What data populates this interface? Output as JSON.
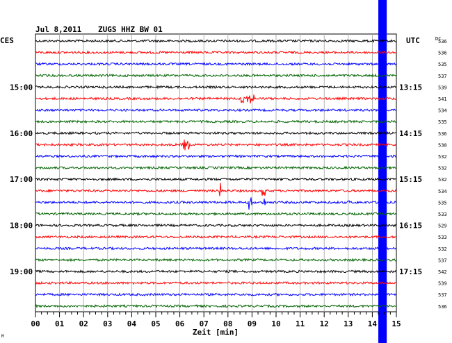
{
  "header": {
    "date": "Jul 8,2011",
    "station": "ZUGS HHZ BW 01",
    "left_tz": "CES",
    "right_tz": "UTC",
    "dc_label": "DC"
  },
  "chart_data": {
    "type": "line",
    "title": "Jul 8,2011   ZUGS HHZ BW 01",
    "xlabel": "Zeit [min]",
    "x_ticks": [
      "00",
      "01",
      "02",
      "03",
      "04",
      "05",
      "06",
      "07",
      "08",
      "09",
      "10",
      "11",
      "12",
      "13",
      "14",
      "15"
    ],
    "xlim": [
      0,
      15
    ],
    "trace_colors": [
      "#000000",
      "#ff0000",
      "#0000ff",
      "#006400"
    ],
    "left_hour_labels": [
      {
        "row": 4,
        "label": "15:00"
      },
      {
        "row": 8,
        "label": "16:00"
      },
      {
        "row": 12,
        "label": "17:00"
      },
      {
        "row": 16,
        "label": "18:00"
      },
      {
        "row": 20,
        "label": "19:00"
      }
    ],
    "right_hour_labels": [
      {
        "row": 4,
        "label": "13:15"
      },
      {
        "row": 8,
        "label": "14:15"
      },
      {
        "row": 12,
        "label": "15:15"
      },
      {
        "row": 16,
        "label": "16:15"
      },
      {
        "row": 20,
        "label": "17:15"
      }
    ],
    "dc_values": [
      "536",
      "536",
      "535",
      "537",
      "539",
      "541",
      "534",
      "535",
      "536",
      "530",
      "532",
      "532",
      "532",
      "534",
      "535",
      "533",
      "529",
      "533",
      "532",
      "537",
      "542",
      "539",
      "537",
      "536"
    ],
    "events": [
      {
        "row": 5,
        "minute": 8.5,
        "amplitude": 7,
        "duration": 0.6
      },
      {
        "row": 9,
        "minute": 6.1,
        "amplitude": 8,
        "duration": 0.3
      },
      {
        "row": 13,
        "minute": 7.65,
        "amplitude": 12,
        "duration": 0.15
      },
      {
        "row": 13,
        "minute": 9.4,
        "amplitude": 10,
        "duration": 0.15
      },
      {
        "row": 14,
        "minute": 8.85,
        "amplitude": 11,
        "duration": 0.15
      },
      {
        "row": 14,
        "minute": 9.4,
        "amplitude": 8,
        "duration": 0.15
      },
      {
        "row": 14,
        "minute": 13.0,
        "amplitude": 4,
        "duration": 0.1
      }
    ],
    "gap_band": {
      "start_minute": 14.25,
      "end_minute": 14.6,
      "color": "#0000ff"
    },
    "grid": true
  },
  "footer": {
    "corner_mark": "M"
  }
}
